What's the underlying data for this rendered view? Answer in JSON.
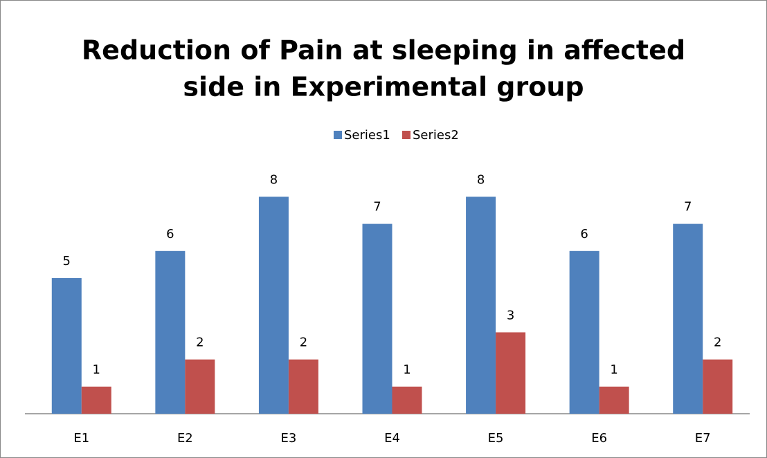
{
  "chart_data": {
    "type": "bar",
    "title_lines": [
      "Reduction of Pain at sleeping in affected",
      "side in Experimental group"
    ],
    "categories": [
      "E1",
      "E2",
      "E3",
      "E4",
      "E5",
      "E6",
      "E7"
    ],
    "series": [
      {
        "name": "Series1",
        "color": "#4f81bd",
        "values": [
          5,
          6,
          8,
          7,
          8,
          6,
          7
        ]
      },
      {
        "name": "Series2",
        "color": "#c0504d",
        "values": [
          1,
          2,
          2,
          1,
          3,
          1,
          2
        ]
      }
    ],
    "legend": "top"
  }
}
